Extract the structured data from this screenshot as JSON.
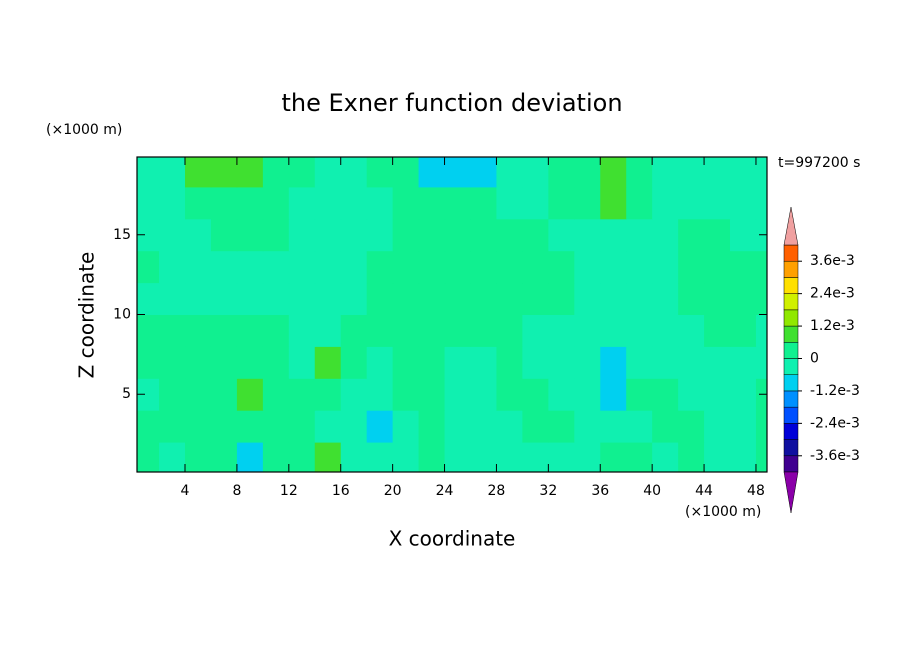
{
  "chart_data": {
    "type": "contour",
    "title": "the Exner function deviation",
    "xlabel": "X coordinate",
    "ylabel": "Z coordinate",
    "xunit": "(×1000 m)",
    "yunit": "(×1000 m)",
    "annotation": "t=997200 s",
    "xlim": [
      0.3,
      48.85
    ],
    "ylim": [
      0.125,
      19.875
    ],
    "xticks": [
      4,
      8,
      12,
      16,
      20,
      24,
      28,
      32,
      36,
      40,
      44,
      48
    ],
    "yticks": [
      5,
      10,
      15
    ],
    "x": [
      1,
      3,
      5,
      7,
      9,
      11,
      13,
      15,
      17,
      19,
      21,
      23,
      25,
      27,
      29,
      31,
      33,
      35,
      37,
      39,
      41,
      43,
      45,
      47,
      49
    ],
    "y": [
      1,
      3,
      5,
      7,
      9,
      11,
      13,
      15,
      17,
      19
    ],
    "z": [
      [
        0.0003,
        -0.0003,
        0.0003,
        0.0003,
        -0.0009,
        0.0003,
        0.0003,
        0.0009,
        -0.0003,
        -0.0003,
        -0.0003,
        0.0003,
        -0.0003,
        -0.0003,
        -0.0003,
        -0.0003,
        -0.0003,
        -0.0003,
        0.0003,
        0.0003,
        -0.0003,
        0.0003,
        -0.0003,
        -0.0003,
        0.0003
      ],
      [
        0.0003,
        0.0003,
        0.0003,
        0.0003,
        0.0003,
        0.0003,
        0.0003,
        -0.0003,
        -0.0003,
        -0.0009,
        -0.0003,
        0.0003,
        -0.0003,
        -0.0003,
        -0.0003,
        0.0003,
        0.0003,
        -0.0003,
        -0.0003,
        -0.0003,
        0.0003,
        0.0003,
        -0.0003,
        -0.0003,
        0.0003
      ],
      [
        -0.0003,
        0.0003,
        0.0003,
        0.0003,
        0.0009,
        0.0003,
        0.0003,
        0.0003,
        -0.0003,
        -0.0003,
        0.0003,
        0.0003,
        -0.0003,
        -0.0003,
        0.0003,
        0.0003,
        -0.0003,
        -0.0003,
        -0.0009,
        0.0003,
        0.0003,
        -0.0003,
        -0.0003,
        -0.0003,
        0.0003
      ],
      [
        0.0003,
        0.0003,
        0.0003,
        0.0003,
        0.0003,
        0.0003,
        -0.0003,
        0.0009,
        0.0003,
        -0.0003,
        0.0003,
        0.0003,
        -0.0003,
        -0.0003,
        0.0003,
        -0.0003,
        -0.0003,
        -0.0003,
        -0.0009,
        -0.0003,
        -0.0003,
        -0.0003,
        -0.0003,
        -0.0003,
        -0.0003
      ],
      [
        0.0003,
        0.0003,
        0.0003,
        0.0003,
        0.0003,
        0.0003,
        -0.0003,
        -0.0003,
        0.0003,
        0.0003,
        0.0003,
        0.0003,
        0.0003,
        0.0003,
        0.0003,
        -0.0003,
        -0.0003,
        -0.0003,
        -0.0003,
        -0.0003,
        -0.0003,
        -0.0003,
        0.0003,
        0.0003,
        -0.0003
      ],
      [
        -0.0003,
        -0.0003,
        -0.0003,
        -0.0003,
        -0.0003,
        -0.0003,
        -0.0003,
        -0.0003,
        -0.0003,
        0.0003,
        0.0003,
        0.0003,
        0.0003,
        0.0003,
        0.0003,
        0.0003,
        0.0003,
        -0.0003,
        -0.0003,
        -0.0003,
        -0.0003,
        0.0003,
        0.0003,
        0.0003,
        0.0003
      ],
      [
        0.0003,
        -0.0003,
        -0.0003,
        -0.0003,
        -0.0003,
        -0.0003,
        -0.0003,
        -0.0003,
        -0.0003,
        0.0003,
        0.0003,
        0.0003,
        0.0003,
        0.0003,
        0.0003,
        0.0003,
        0.0003,
        -0.0003,
        -0.0003,
        -0.0003,
        -0.0003,
        0.0003,
        0.0003,
        0.0003,
        0.0003
      ],
      [
        -0.0003,
        -0.0003,
        -0.0003,
        0.0003,
        0.0003,
        0.0003,
        -0.0003,
        -0.0003,
        -0.0003,
        -0.0003,
        0.0003,
        0.0003,
        0.0003,
        0.0003,
        0.0003,
        0.0003,
        -0.0003,
        -0.0003,
        -0.0003,
        -0.0003,
        -0.0003,
        0.0003,
        0.0003,
        -0.0003,
        -0.0003
      ],
      [
        -0.0003,
        -0.0003,
        0.0003,
        0.0003,
        0.0003,
        0.0003,
        -0.0003,
        -0.0003,
        -0.0003,
        -0.0003,
        0.0003,
        0.0003,
        0.0003,
        0.0003,
        -0.0003,
        -0.0003,
        0.0003,
        0.0003,
        0.0009,
        0.0003,
        -0.0003,
        -0.0003,
        -0.0003,
        -0.0003,
        -0.0003
      ],
      [
        -0.0003,
        -0.0003,
        0.0009,
        0.0009,
        0.0009,
        0.0003,
        0.0003,
        -0.0003,
        -0.0003,
        0.0003,
        0.0003,
        -0.0009,
        -0.0009,
        -0.0009,
        -0.0003,
        -0.0003,
        0.0003,
        0.0003,
        0.0009,
        0.0003,
        -0.0003,
        -0.0003,
        -0.0003,
        -0.0003,
        -0.0003
      ]
    ],
    "levels": [
      -0.0042,
      -0.0036,
      -0.003,
      -0.0024,
      -0.0018,
      -0.0012,
      -0.0006,
      0,
      0.0006,
      0.0012,
      0.0018,
      0.0024,
      0.003,
      0.0036,
      0.0042
    ],
    "colors": [
      "#400090",
      "#1010a0",
      "#0000d8",
      "#0050ff",
      "#0090ff",
      "#00d0f0",
      "#10f0b0",
      "#10f090",
      "#40e030",
      "#90e800",
      "#d0f000",
      "#ffe000",
      "#ffa000",
      "#ff6000",
      "#ff1010"
    ],
    "under_color": "#8a00a8",
    "over_color": "#f0a0a0",
    "colorbar_ticks": [
      {
        "value": 0.0036,
        "label": "3.6e-3"
      },
      {
        "value": 0.0024,
        "label": "2.4e-3"
      },
      {
        "value": 0.0012,
        "label": "1.2e-3"
      },
      0,
      {
        "value": -0.0012,
        "label": "-1.2e-3"
      },
      {
        "value": -0.0024,
        "label": "-2.4e-3"
      },
      {
        "value": -0.0036,
        "label": "-3.6e-3"
      }
    ]
  }
}
